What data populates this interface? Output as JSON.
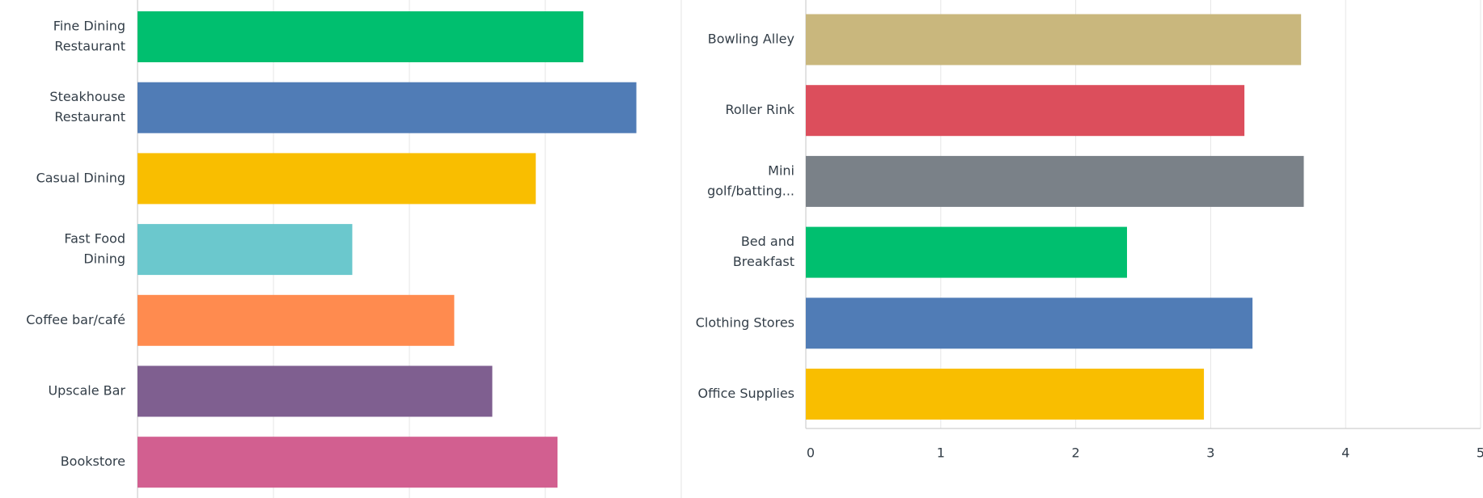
{
  "chart_data": [
    {
      "type": "bar",
      "orientation": "horizontal",
      "categories": [
        [
          "Fine Dining",
          "Restaurant"
        ],
        [
          "Steakhouse",
          "Restaurant"
        ],
        [
          "Casual Dining"
        ],
        [
          "Fast Food",
          "Dining"
        ],
        [
          "Coffee bar/café"
        ],
        [
          "Upscale Bar"
        ],
        [
          "Bookstore"
        ]
      ],
      "values": [
        3.28,
        3.67,
        2.93,
        1.58,
        2.33,
        2.61,
        3.09
      ],
      "colors": [
        "#00bf6f",
        "#507cb6",
        "#f9be00",
        "#6bc8cd",
        "#ff8b4f",
        "#7f5f90",
        "#d25f90"
      ],
      "xlim": [
        0,
        5
      ],
      "xticks": [
        0,
        1,
        2,
        3,
        4
      ],
      "tick_labels": false,
      "grid": true
    },
    {
      "type": "bar",
      "orientation": "horizontal",
      "categories": [
        [
          "Bowling Alley"
        ],
        [
          "Roller Rink"
        ],
        [
          "Mini",
          "golf/batting..."
        ],
        [
          "Bed and",
          "Breakfast"
        ],
        [
          "Clothing Stores"
        ],
        [
          "Office Supplies"
        ]
      ],
      "values": [
        3.67,
        3.25,
        3.69,
        2.38,
        3.31,
        2.95
      ],
      "colors": [
        "#c9b77d",
        "#dc4e5c",
        "#7a8188",
        "#00bf6f",
        "#507cb6",
        "#f9be00"
      ],
      "xlim": [
        0,
        5
      ],
      "xticks": [
        0,
        1,
        2,
        3,
        4,
        5
      ],
      "tick_labels": true,
      "grid": true
    }
  ]
}
